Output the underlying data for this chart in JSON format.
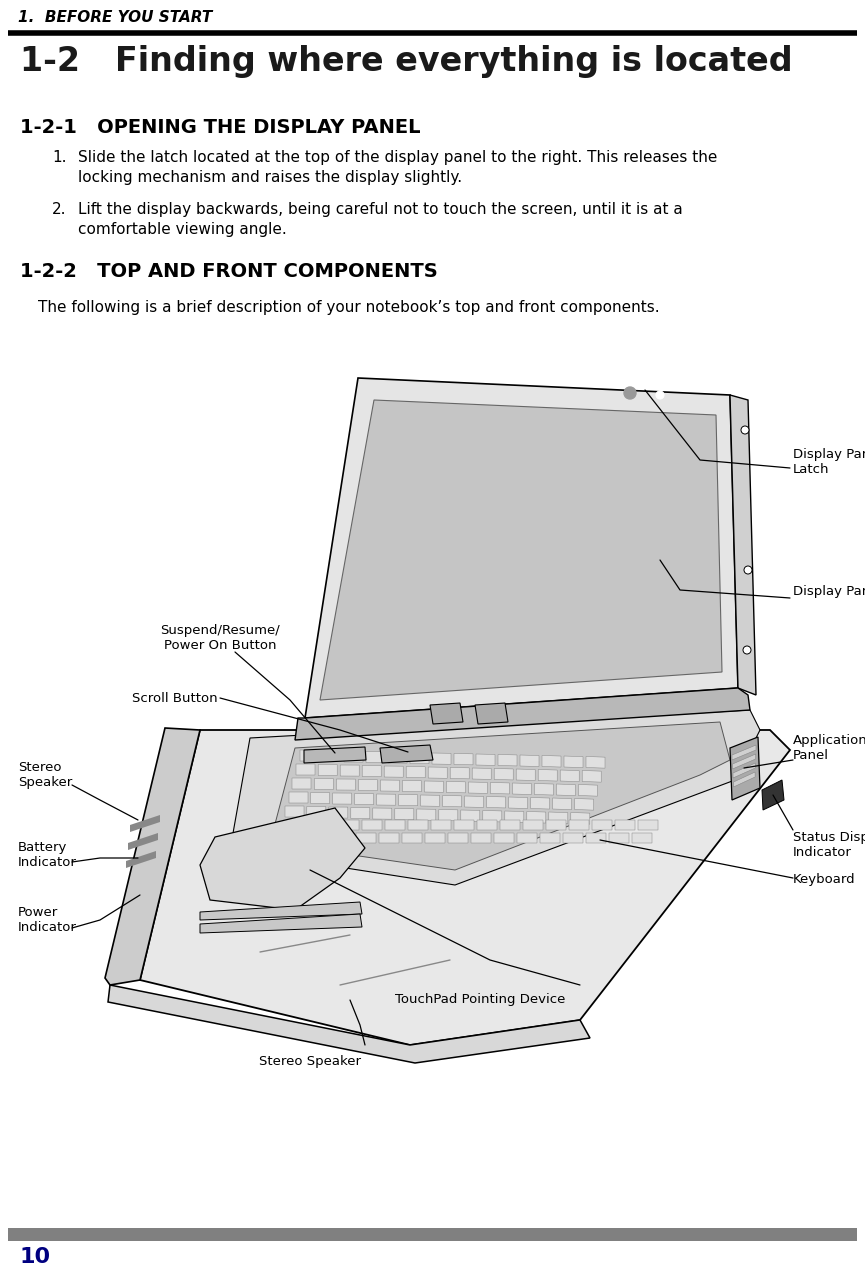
{
  "bg_color": "#ffffff",
  "header_text": "1.  BEFORE YOU START",
  "section_title": "1-2   Finding where everything is located",
  "subsection1": "1-2-1   OPENING THE DISPLAY PANEL",
  "item1_text_line1": "Slide the latch located at the top of the display panel to the right. This releases the",
  "item1_text_line2": "locking mechanism and raises the display slightly.",
  "item2_text_line1": "Lift the display backwards, being careful not to touch the screen, until it is at a",
  "item2_text_line2": "comfortable viewing angle.",
  "subsection2": "1-2-2   TOP AND FRONT COMPONENTS",
  "desc_text": "The following is a brief description of your notebook’s top and front components.",
  "footer_num": "10",
  "footer_color": "#000080",
  "footer_bar_color": "#808080",
  "label_display_panel_latch": "Display Panel\nLatch",
  "label_display_panel": "Display Panel",
  "label_application_panel": "Application\nPanel",
  "label_status_display": "Status Display\nIndicator",
  "label_keyboard": "Keyboard",
  "label_touchpad": "TouchPad Pointing Device",
  "label_stereo_speaker_bottom": "Stereo Speaker",
  "label_power_indicator": "Power\nIndicator",
  "label_battery_indicator": "Battery\nIndicator",
  "label_stereo_speaker_left": "Stereo\nSpeaker",
  "label_scroll_button": "Scroll Button",
  "label_suspend_resume": "Suspend/Resume/\nPower On Button"
}
